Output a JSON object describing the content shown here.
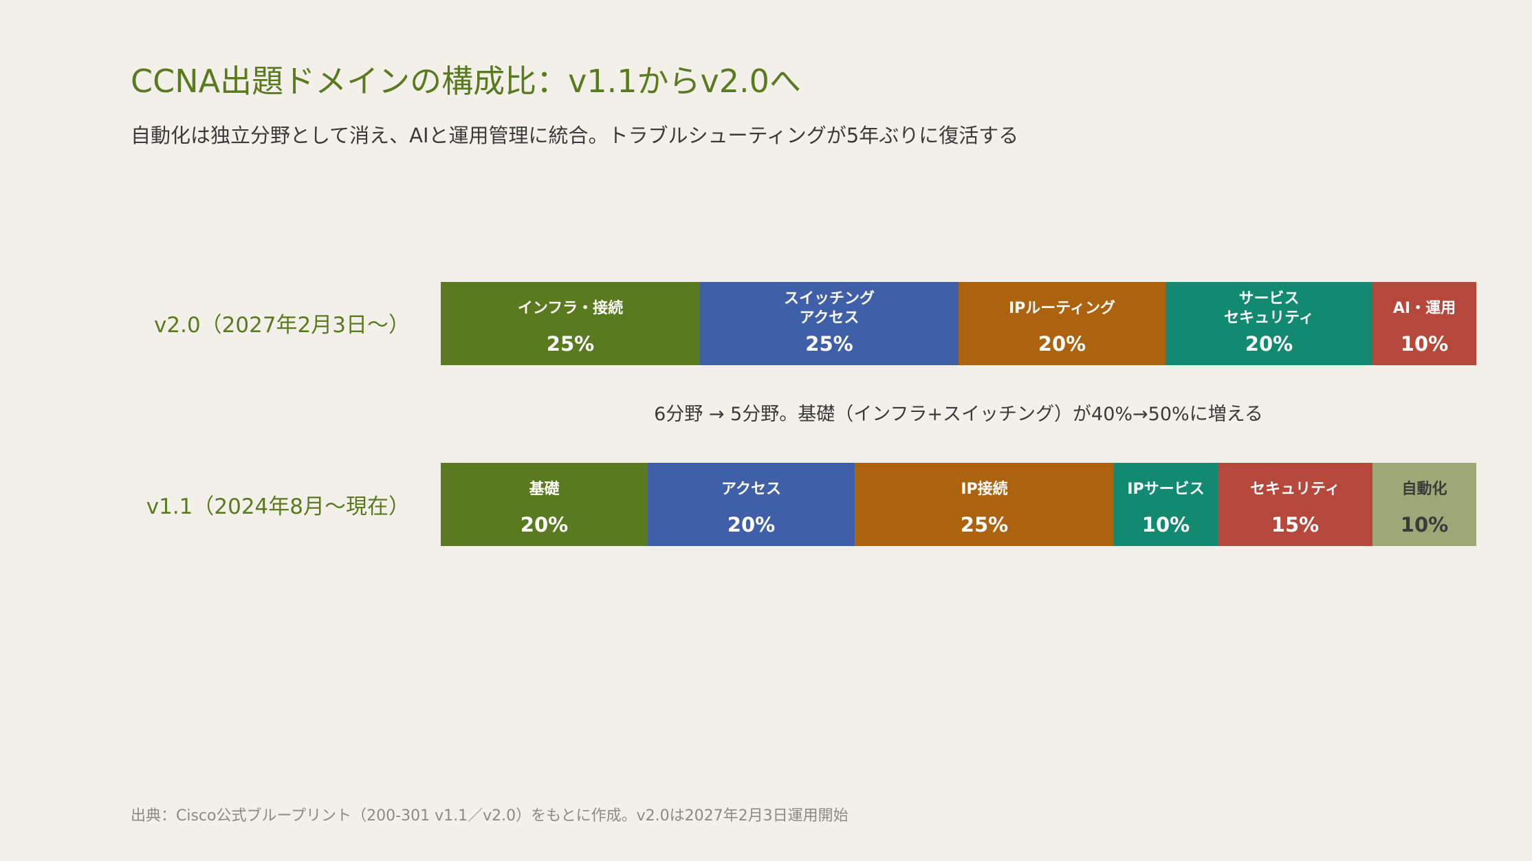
{
  "title": "CCNA出題ドメインの構成比：v1.1からv2.0へ",
  "subtitle": "自動化は独立分野として消え、AIと運用管理に統合。トラブルシューティングが5年ぶりに復活する",
  "note": "6分野 → 5分野。基礎（インフラ+スイッチング）が40%→50%に増える",
  "source": "出典：Cisco公式ブループリント（200-301 v1.1／v2.0）をもとに作成。v2.0は2027年2月3日運用開始",
  "chart_data": {
    "type": "bar",
    "orientation": "horizontal-stacked-100",
    "categories": [
      "v2.0（2027年2月3日〜）",
      "v1.1（2024年8月〜現在）"
    ],
    "rows": [
      {
        "label": "v2.0（2027年2月3日〜）",
        "segments": [
          {
            "name": "インフラ・接続",
            "value": 25,
            "display": "25%",
            "color": "#5a7a1f",
            "text_color": "#ffffff"
          },
          {
            "name": "スイッチング\nアクセス",
            "value": 25,
            "display": "25%",
            "color": "#3f5fa8",
            "text_color": "#ffffff"
          },
          {
            "name": "IPルーティング",
            "value": 20,
            "display": "20%",
            "color": "#ad620e",
            "text_color": "#ffffff"
          },
          {
            "name": "サービス\nセキュリティ",
            "value": 20,
            "display": "20%",
            "color": "#128a72",
            "text_color": "#ffffff"
          },
          {
            "name": "AI・運用",
            "value": 10,
            "display": "10%",
            "color": "#b5473b",
            "text_color": "#ffffff"
          }
        ]
      },
      {
        "label": "v1.1（2024年8月〜現在）",
        "segments": [
          {
            "name": "基礎",
            "value": 20,
            "display": "20%",
            "color": "#5a7a1f",
            "text_color": "#ffffff"
          },
          {
            "name": "アクセス",
            "value": 20,
            "display": "20%",
            "color": "#3f5fa8",
            "text_color": "#ffffff"
          },
          {
            "name": "IP接続",
            "value": 25,
            "display": "25%",
            "color": "#ad620e",
            "text_color": "#ffffff"
          },
          {
            "name": "IPサービス",
            "value": 10,
            "display": "10%",
            "color": "#128a72",
            "text_color": "#ffffff"
          },
          {
            "name": "セキュリティ",
            "value": 15,
            "display": "15%",
            "color": "#b5473b",
            "text_color": "#ffffff"
          },
          {
            "name": "自動化",
            "value": 10,
            "display": "10%",
            "color": "#9ca977",
            "text_color": "#3a3a3a"
          }
        ]
      }
    ],
    "xlim": [
      0,
      100
    ],
    "legend": "none",
    "grid": false
  }
}
